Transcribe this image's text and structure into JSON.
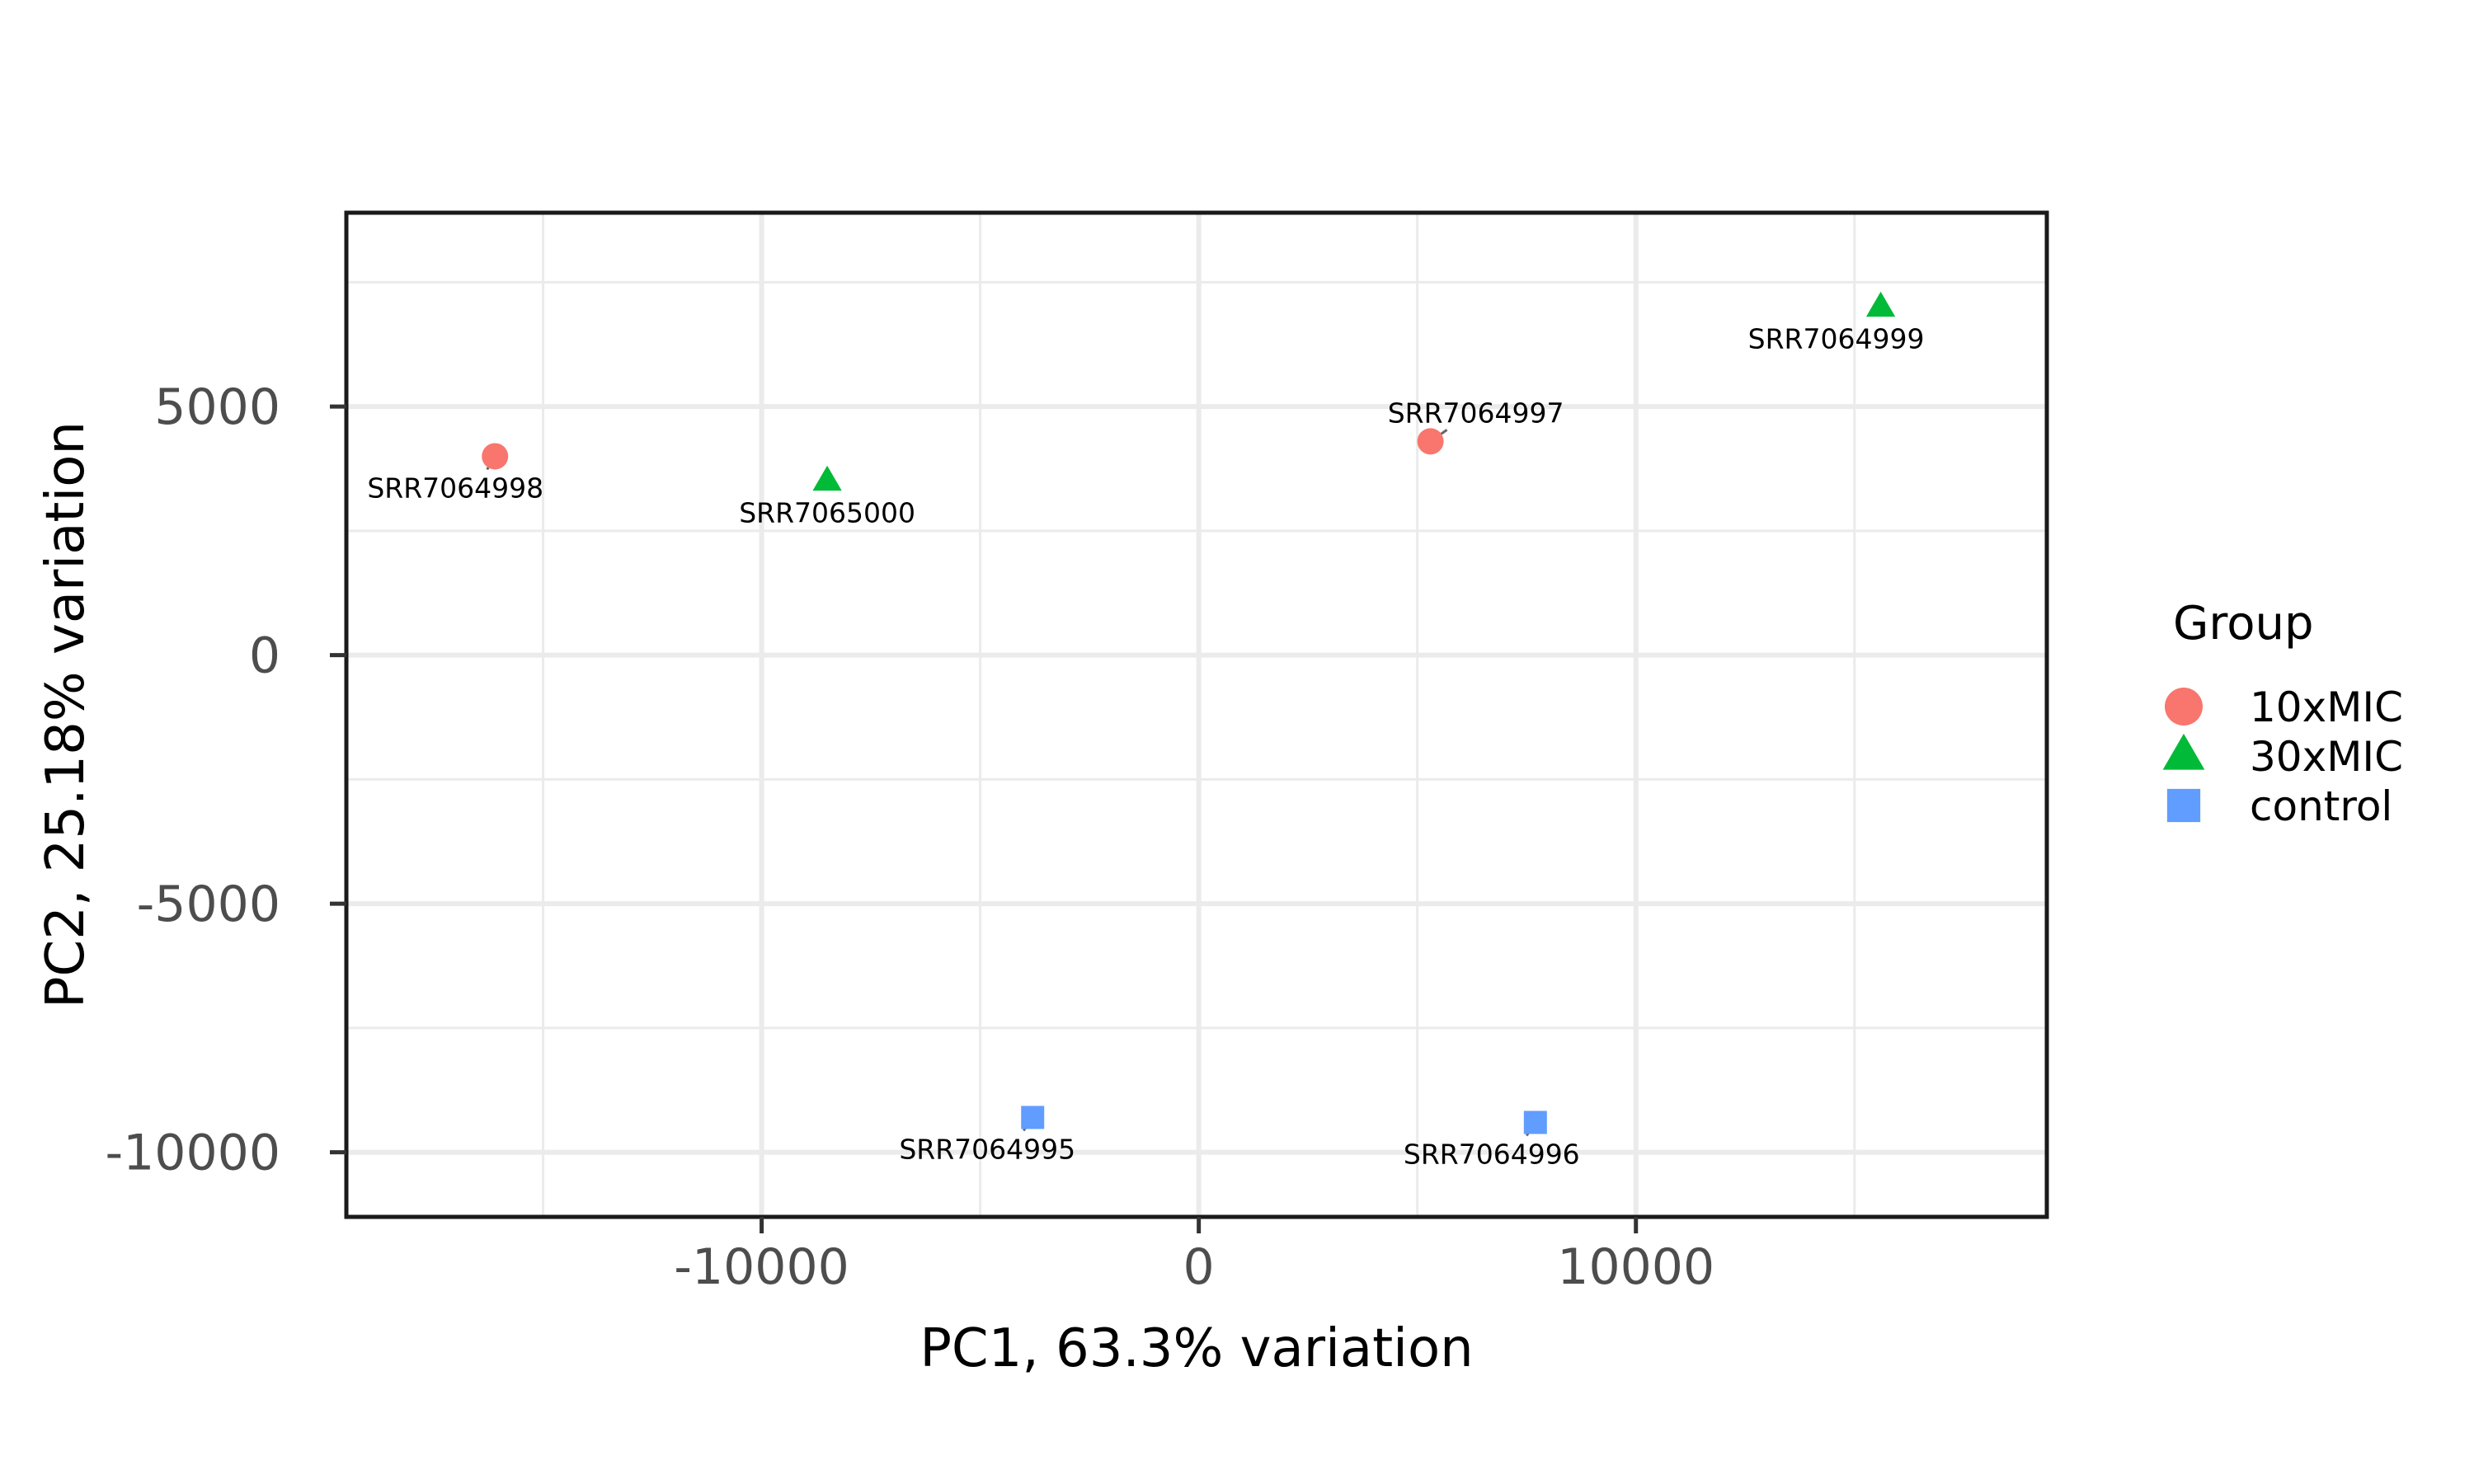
{
  "chart_data": {
    "type": "scatter",
    "title": "",
    "xlabel": "PC1, 63.3% variation",
    "ylabel": "PC2, 25.18% variation",
    "xlim": [
      -19500,
      19400
    ],
    "ylim": [
      -11300,
      8900
    ],
    "x_major_ticks": [
      -10000,
      0,
      10000
    ],
    "x_tick_labels": [
      "-10000",
      "0",
      "10000"
    ],
    "x_minor_gridlines": [
      -15000,
      -5000,
      5000,
      15000
    ],
    "y_major_ticks": [
      5000,
      0,
      -5000,
      -10000
    ],
    "y_tick_labels": [
      "5000",
      "0",
      "-5000",
      "-10000"
    ],
    "y_minor_gridlines": [
      7500,
      2500,
      -2500,
      -7500
    ],
    "grid": true,
    "legend": {
      "title": "Group",
      "position": "right",
      "entries": [
        {
          "name": "10xMIC",
          "shape": "circle",
          "color": "#F8766D"
        },
        {
          "name": "30xMIC",
          "shape": "triangle",
          "color": "#00BA38"
        },
        {
          "name": "control",
          "shape": "square",
          "color": "#619CFF"
        }
      ]
    },
    "series": [
      {
        "name": "10xMIC",
        "shape": "circle",
        "color": "#F8766D",
        "points": [
          {
            "label": "SRR7064998",
            "x": -16100,
            "y": 4000
          },
          {
            "label": "SRR7064997",
            "x": 5300,
            "y": 4300
          }
        ]
      },
      {
        "name": "30xMIC",
        "shape": "triangle",
        "color": "#00BA38",
        "points": [
          {
            "label": "SRR7065000",
            "x": -8500,
            "y": 3500
          },
          {
            "label": "SRR7064999",
            "x": 15600,
            "y": 7000
          }
        ]
      },
      {
        "name": "control",
        "shape": "square",
        "color": "#619CFF",
        "points": [
          {
            "label": "SRR7064995",
            "x": -3800,
            "y": -9300
          },
          {
            "label": "SRR7064996",
            "x": 7700,
            "y": -9400
          }
        ]
      }
    ]
  }
}
